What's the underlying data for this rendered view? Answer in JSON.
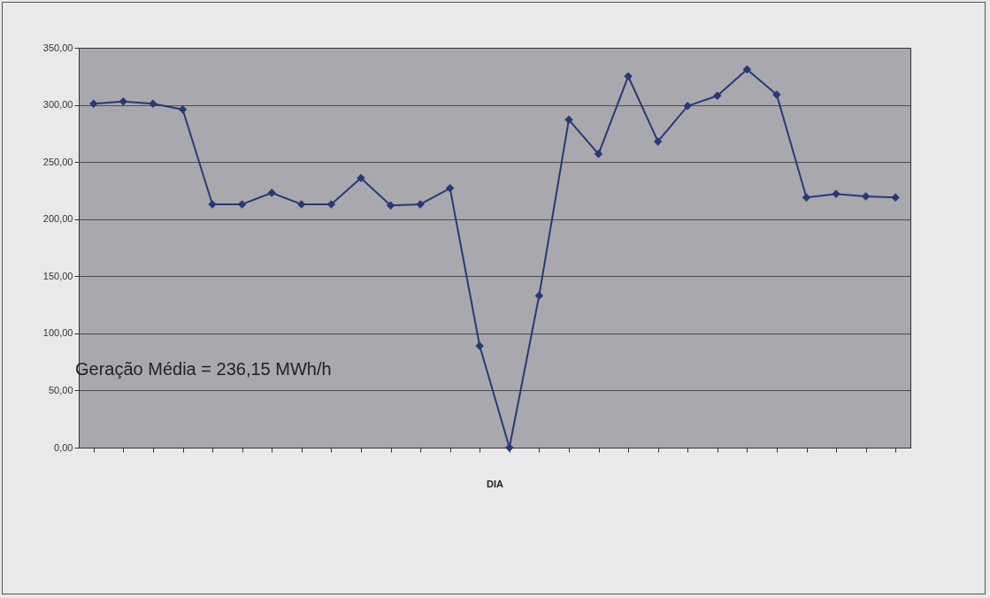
{
  "chart_data": {
    "type": "line",
    "xlabel": "DIA",
    "annotations": [
      "Geração Média = 236,15 MWh/h"
    ],
    "categories": [
      null,
      null,
      null,
      null,
      null,
      null,
      null,
      null,
      null,
      null,
      null,
      null,
      null,
      null,
      null,
      null,
      null,
      null,
      null,
      null,
      null,
      null,
      null,
      null,
      null,
      null,
      null,
      null
    ],
    "series": [
      {
        "color": "#27397a",
        "values": [
          301,
          303,
          301,
          296,
          213,
          213,
          223,
          213,
          213,
          236,
          212,
          213,
          227,
          89,
          0,
          133,
          287,
          257,
          325,
          268,
          299,
          308,
          331,
          309,
          219,
          222,
          220,
          219
        ]
      }
    ],
    "ylim": [
      0,
      350
    ],
    "yticks": [
      {
        "value": 0,
        "label": "0,00"
      },
      {
        "value": 50,
        "label": "50,00"
      },
      {
        "value": 100,
        "label": "100,00"
      },
      {
        "value": 150,
        "label": "150,00"
      },
      {
        "value": 200,
        "label": "200,00"
      },
      {
        "value": 250,
        "label": "250,00"
      },
      {
        "value": 300,
        "label": "300,00"
      },
      {
        "value": 350,
        "label": "350,00"
      }
    ],
    "grid": "y",
    "marker": "diamond",
    "line_style": "solid",
    "tick_labels": "y"
  }
}
